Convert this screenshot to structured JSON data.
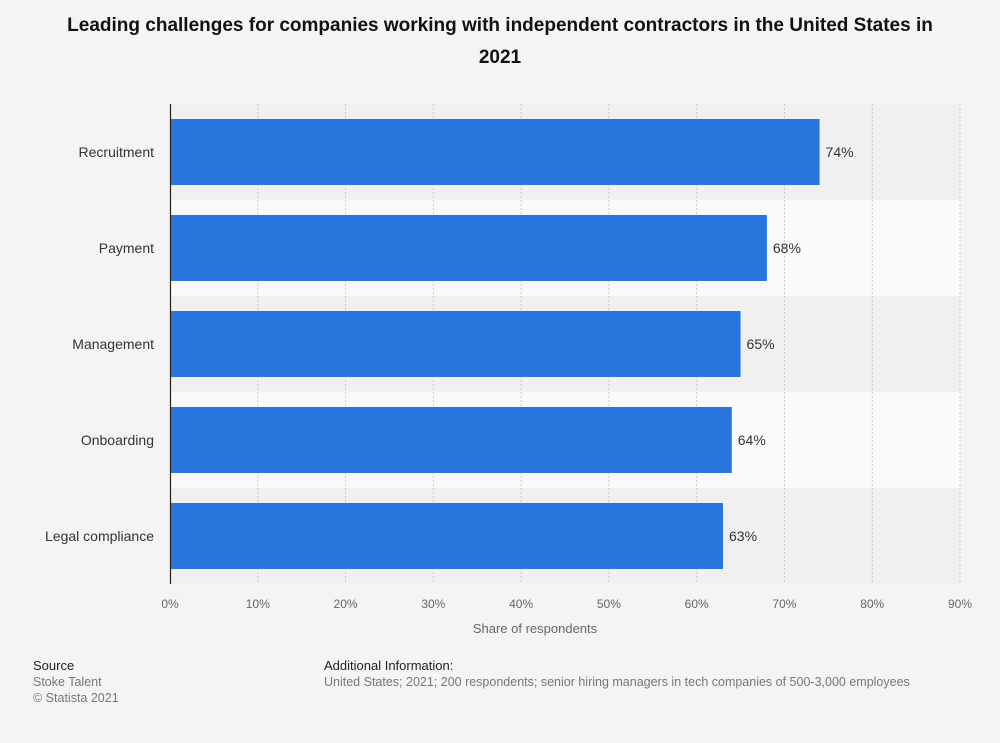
{
  "chart_data": {
    "type": "bar",
    "orientation": "horizontal",
    "title": "Leading challenges for companies working with independent contractors in the United States in 2021",
    "categories": [
      "Recruitment",
      "Payment",
      "Management",
      "Onboarding",
      "Legal compliance"
    ],
    "values": [
      74,
      68,
      65,
      64,
      63
    ],
    "value_labels": [
      "74%",
      "68%",
      "65%",
      "64%",
      "63%"
    ],
    "xlabel": "Share of respondents",
    "ylabel": "",
    "xlim": [
      0,
      90
    ],
    "xticks": [
      0,
      10,
      20,
      30,
      40,
      50,
      60,
      70,
      80,
      90
    ],
    "xtick_labels": [
      "0%",
      "10%",
      "20%",
      "30%",
      "40%",
      "50%",
      "60%",
      "70%",
      "80%",
      "90%"
    ],
    "grid": true,
    "bar_color": "#2876dd"
  },
  "footer": {
    "source_heading": "Source",
    "source_name": "Stoke Talent",
    "copyright": "© Statista 2021",
    "info_heading": "Additional Information:",
    "info_text": "United States; 2021; 200 respondents; senior hiring managers in tech companies of 500-3,000 employees"
  }
}
